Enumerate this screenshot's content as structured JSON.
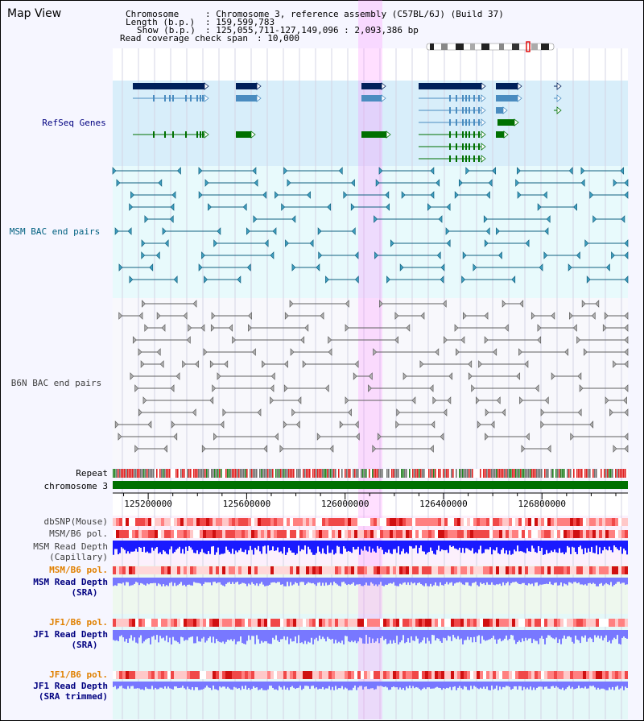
{
  "title": "Map View",
  "header": {
    "chromosome_label": "Chromosome",
    "chromosome_value": ": Chromosome 3, reference assembly (C57BL/6J) (Build 37)",
    "length_label": "Length (b.p.)",
    "length_value": ": 159,599,783",
    "show_label": "Show (b.p.)",
    "show_value": ": 125,055,711-127,149,096 : 2,093,386 bp",
    "coverage_label": "Read coverage check span",
    "coverage_value": ": 10,000"
  },
  "tracks": {
    "refseq": "RefSeq Genes",
    "msm_bac": "MSM BAC end pairs",
    "b6n_bac": "B6N BAC end pairs",
    "repeat": "Repeat",
    "chromosome": "chromosome 3",
    "dbsnp": "dbSNP(Mouse)",
    "msm_b6_pol": "MSM/B6 pol.",
    "msm_depth_cap_1": "MSM Read Depth",
    "msm_depth_cap_2": "(Capillary)",
    "msm_b6_pol_2": "MSM/B6 pol.",
    "msm_depth_sra_1": "MSM Read Depth",
    "msm_depth_sra_2": "(SRA)",
    "jf1_pol": "JF1/B6 pol.",
    "jf1_depth_1": "JF1 Read Depth",
    "jf1_depth_2": "(SRA)",
    "jf1_pol_2": "JF1/B6 pol.",
    "jf1_trim_1": "JF1 Read Depth",
    "jf1_trim_2": "(SRA trimmed)"
  },
  "axis_ticks": [
    "125200000",
    "125600000",
    "126000000",
    "126400000",
    "126800000"
  ],
  "colors": {
    "label_blue": "#000080",
    "label_orange": "#e08000",
    "label_teal": "#006080",
    "highlight": "#ff80ff",
    "gene_dark": "#00205a",
    "gene_mid": "#4a8cc0",
    "gene_green": "#007000",
    "chrom_green": "#007000",
    "depth_blue": "#1a1aff",
    "depth_light": "#7878ff"
  }
}
